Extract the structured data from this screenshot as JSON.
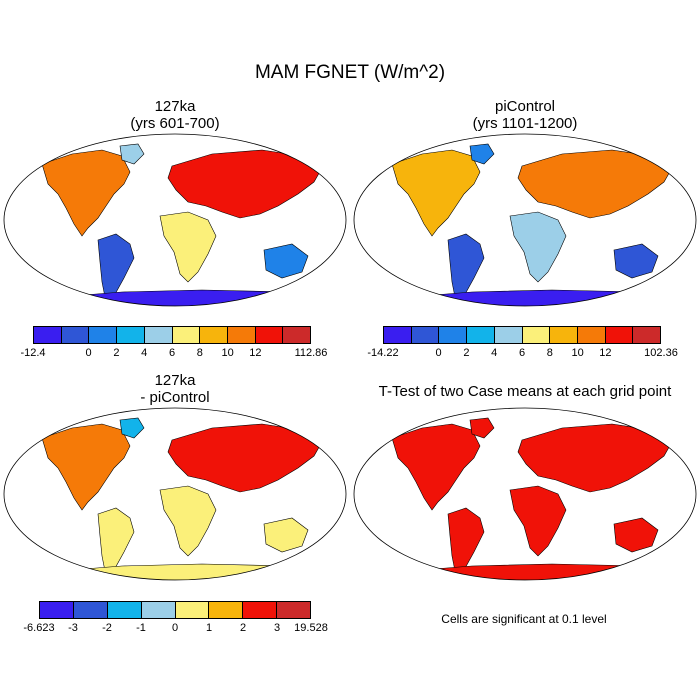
{
  "title": "MAM FGNET (W/m^2)",
  "panels": [
    {
      "id": "p1",
      "title_line1": "127ka",
      "title_line2": "(yrs 601-700)"
    },
    {
      "id": "p2",
      "title_line1": "piControl",
      "title_line2": "(yrs 1101-1200)"
    },
    {
      "id": "p3",
      "title_line1": "127ka",
      "title_line2": "- piControl"
    },
    {
      "id": "p4",
      "title_line1": "T-Test of two Case means at each grid point",
      "title_line2": ""
    }
  ],
  "colorbars": [
    {
      "id": "cb1",
      "colors": [
        "#3a1ef0",
        "#2f56d6",
        "#1f82e8",
        "#12b3ea",
        "#9ccfe8",
        "#fbf07a",
        "#f7b40c",
        "#f57a08",
        "#f01208",
        "#cc2a2a"
      ],
      "labels": [
        "-12.4",
        "0",
        "2",
        "4",
        "6",
        "8",
        "10",
        "12",
        "112.86"
      ],
      "label_edges": [
        0,
        2,
        3,
        4,
        5,
        6,
        7,
        8,
        10
      ]
    },
    {
      "id": "cb2",
      "colors": [
        "#3a1ef0",
        "#2f56d6",
        "#1f82e8",
        "#12b3ea",
        "#9ccfe8",
        "#fbf07a",
        "#f7b40c",
        "#f57a08",
        "#f01208",
        "#cc2a2a"
      ],
      "labels": [
        "-14.22",
        "0",
        "2",
        "4",
        "6",
        "8",
        "10",
        "12",
        "102.36"
      ],
      "label_edges": [
        0,
        2,
        3,
        4,
        5,
        6,
        7,
        8,
        10
      ]
    },
    {
      "id": "cb3",
      "colors": [
        "#3a1ef0",
        "#2f56d6",
        "#12b3ea",
        "#9ccfe8",
        "#fbf07a",
        "#f7b40c",
        "#f01208",
        "#cc2a2a"
      ],
      "labels": [
        "-6.623",
        "-3",
        "-2",
        "-1",
        "0",
        "1",
        "2",
        "3",
        "19.528"
      ],
      "label_edges": [
        0,
        1,
        2,
        3,
        4,
        5,
        6,
        7,
        8
      ]
    }
  ],
  "note": "Cells are significant at 0.1 level",
  "colors": {
    "p1": {
      "na": "#f57a08",
      "sa": "#2f56d6",
      "af": "#fbf07a",
      "eu": "#f01208",
      "au": "#1f82e8",
      "an": "#3a1ef0",
      "gl": "#9ccfe8"
    },
    "p2": {
      "na": "#f7b40c",
      "sa": "#2f56d6",
      "af": "#9ccfe8",
      "eu": "#f57a08",
      "au": "#2f56d6",
      "an": "#3a1ef0",
      "gl": "#1f82e8"
    },
    "p3": {
      "na": "#f57a08",
      "sa": "#fbf07a",
      "af": "#fbf07a",
      "eu": "#f01208",
      "au": "#fbf07a",
      "an": "#fbf07a",
      "gl": "#12b3ea"
    },
    "p4": {
      "na": "#f01208",
      "sa": "#f01208",
      "af": "#f01208",
      "eu": "#f01208",
      "au": "#f01208",
      "an": "#f01208",
      "gl": "#f01208"
    }
  }
}
